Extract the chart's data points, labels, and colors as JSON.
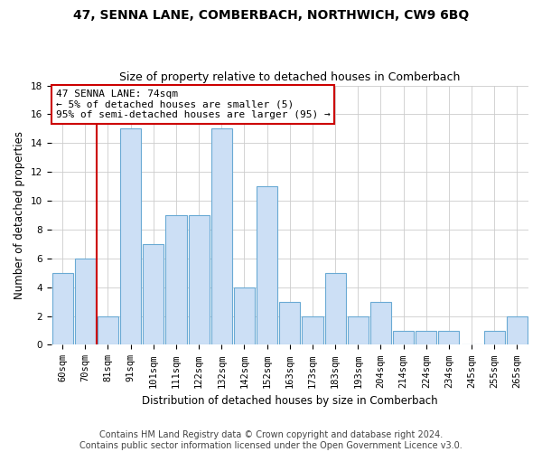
{
  "title": "47, SENNA LANE, COMBERBACH, NORTHWICH, CW9 6BQ",
  "subtitle": "Size of property relative to detached houses in Comberbach",
  "xlabel": "Distribution of detached houses by size in Comberbach",
  "ylabel": "Number of detached properties",
  "categories": [
    "60sqm",
    "70sqm",
    "81sqm",
    "91sqm",
    "101sqm",
    "111sqm",
    "122sqm",
    "132sqm",
    "142sqm",
    "152sqm",
    "163sqm",
    "173sqm",
    "183sqm",
    "193sqm",
    "204sqm",
    "214sqm",
    "224sqm",
    "234sqm",
    "245sqm",
    "255sqm",
    "265sqm"
  ],
  "values": [
    5,
    6,
    2,
    15,
    7,
    9,
    9,
    15,
    4,
    11,
    3,
    2,
    5,
    2,
    3,
    1,
    1,
    1,
    0,
    1,
    2
  ],
  "bar_color": "#ccdff5",
  "bar_edge_color": "#6aaad4",
  "annotation_text": "47 SENNA LANE: 74sqm\n← 5% of detached houses are smaller (5)\n95% of semi-detached houses are larger (95) →",
  "annotation_box_color": "#ffffff",
  "annotation_box_edge": "#cc0000",
  "vline_x_idx": 1.5,
  "vline_color": "#cc0000",
  "ylim": [
    0,
    18
  ],
  "yticks": [
    0,
    2,
    4,
    6,
    8,
    10,
    12,
    14,
    16,
    18
  ],
  "footer1": "Contains HM Land Registry data © Crown copyright and database right 2024.",
  "footer2": "Contains public sector information licensed under the Open Government Licence v3.0.",
  "title_fontsize": 10,
  "subtitle_fontsize": 9,
  "axis_label_fontsize": 8.5,
  "tick_fontsize": 7.5,
  "annotation_fontsize": 8,
  "footer_fontsize": 7,
  "background_color": "#ffffff",
  "grid_color": "#cccccc"
}
